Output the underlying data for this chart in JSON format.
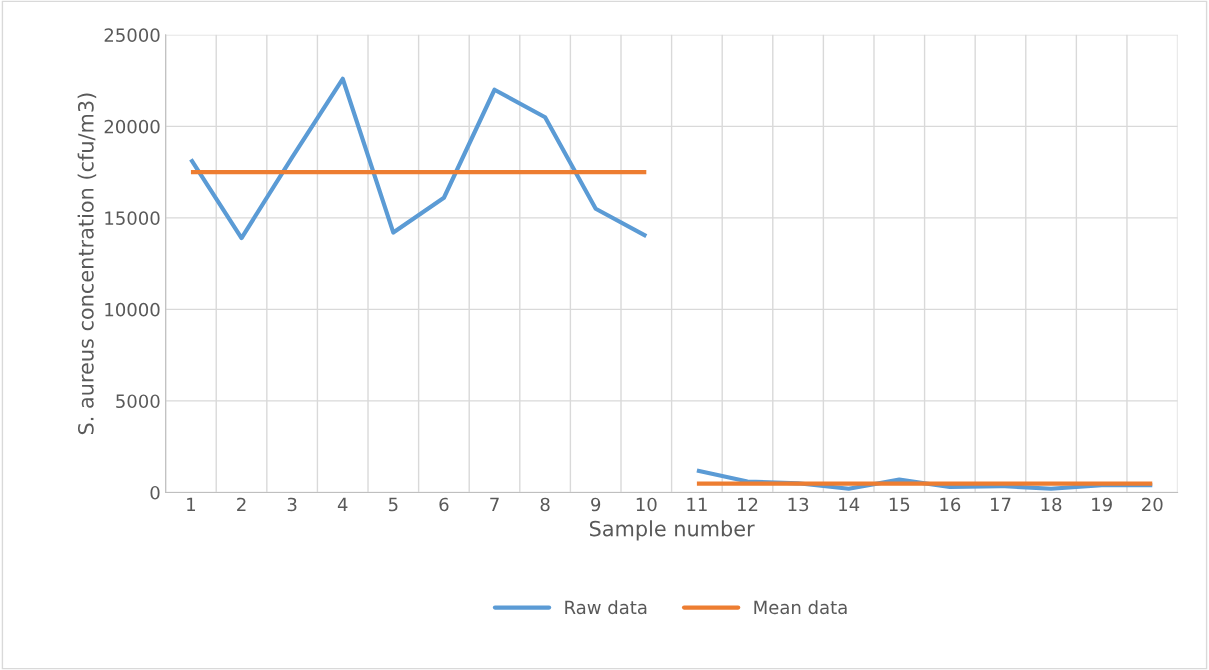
{
  "chart_data": {
    "type": "line",
    "xlabel": "Sample number",
    "ylabel": "S. aureus concentration (cfu/m3)",
    "categories": [
      "1",
      "2",
      "3",
      "4",
      "5",
      "6",
      "7",
      "8",
      "9",
      "10",
      "11",
      "12",
      "13",
      "14",
      "15",
      "16",
      "17",
      "18",
      "19",
      "20"
    ],
    "series": [
      {
        "name": "Raw data",
        "color": "#5b9bd5",
        "values": [
          18200,
          13900,
          18300,
          22600,
          14200,
          16100,
          22000,
          20500,
          15500,
          14000,
          null,
          null,
          null,
          null,
          null,
          null,
          null,
          null,
          null,
          null
        ]
      },
      {
        "color": "#5b9bd5",
        "values": [
          null,
          null,
          null,
          null,
          null,
          null,
          null,
          null,
          null,
          null,
          1200,
          600,
          500,
          200,
          700,
          300,
          350,
          200,
          400,
          400
        ]
      },
      {
        "name": "Mean data",
        "color": "#ed7d31",
        "values": [
          17500,
          17500,
          17500,
          17500,
          17500,
          17500,
          17500,
          17500,
          17500,
          17500,
          null,
          null,
          null,
          null,
          null,
          null,
          null,
          null,
          null,
          null
        ]
      },
      {
        "color": "#ed7d31",
        "values": [
          null,
          null,
          null,
          null,
          null,
          null,
          null,
          null,
          null,
          null,
          480,
          480,
          480,
          480,
          480,
          480,
          480,
          480,
          480,
          480
        ]
      }
    ],
    "ylim": [
      0,
      25000
    ],
    "yticks": [
      0,
      5000,
      10000,
      15000,
      20000,
      25000
    ],
    "grid": true,
    "legend": "bottom",
    "marker": "none",
    "line_style": "solid"
  }
}
